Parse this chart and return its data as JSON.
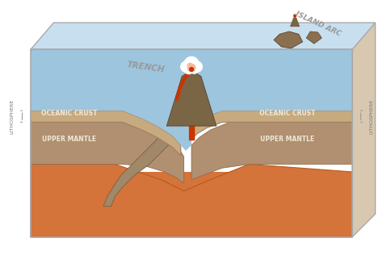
{
  "bg_color": "#ffffff",
  "ocean_top_color": "#c8dff0",
  "ocean_mid_color": "#9dc5de",
  "ocean_bottom_color": "#7aafc8",
  "crust_color": "#c8aa80",
  "crust_dark": "#a08060",
  "mantle_color": "#b09070",
  "mantle_dark": "#907050",
  "asthenosphere_color": "#d4733a",
  "asthenosphere_dark": "#b85a20",
  "subduct_color": "#a08868",
  "subduct_dark": "#786048",
  "volcano_color": "#7a6545",
  "lava_color": "#cc3300",
  "lava_light": "#ff6633",
  "eruption_white": "#ffffff",
  "eruption_pink": "#f5b8a0",
  "island_color": "#8a7050",
  "island_dark": "#5a4028",
  "box_edge": "#aaaaaa",
  "box_top_color": "#b8d4e8",
  "trench_label": "TRENCH",
  "island_arc_label": "ISLAND ARC",
  "oceanic_crust_label": "OCEANIC CRUST",
  "upper_mantle_label": "UPPER MANTLE",
  "lithosphere_label": "LITHOSPHERE",
  "label_gray": "#999999",
  "label_white": "#f0e8d8"
}
